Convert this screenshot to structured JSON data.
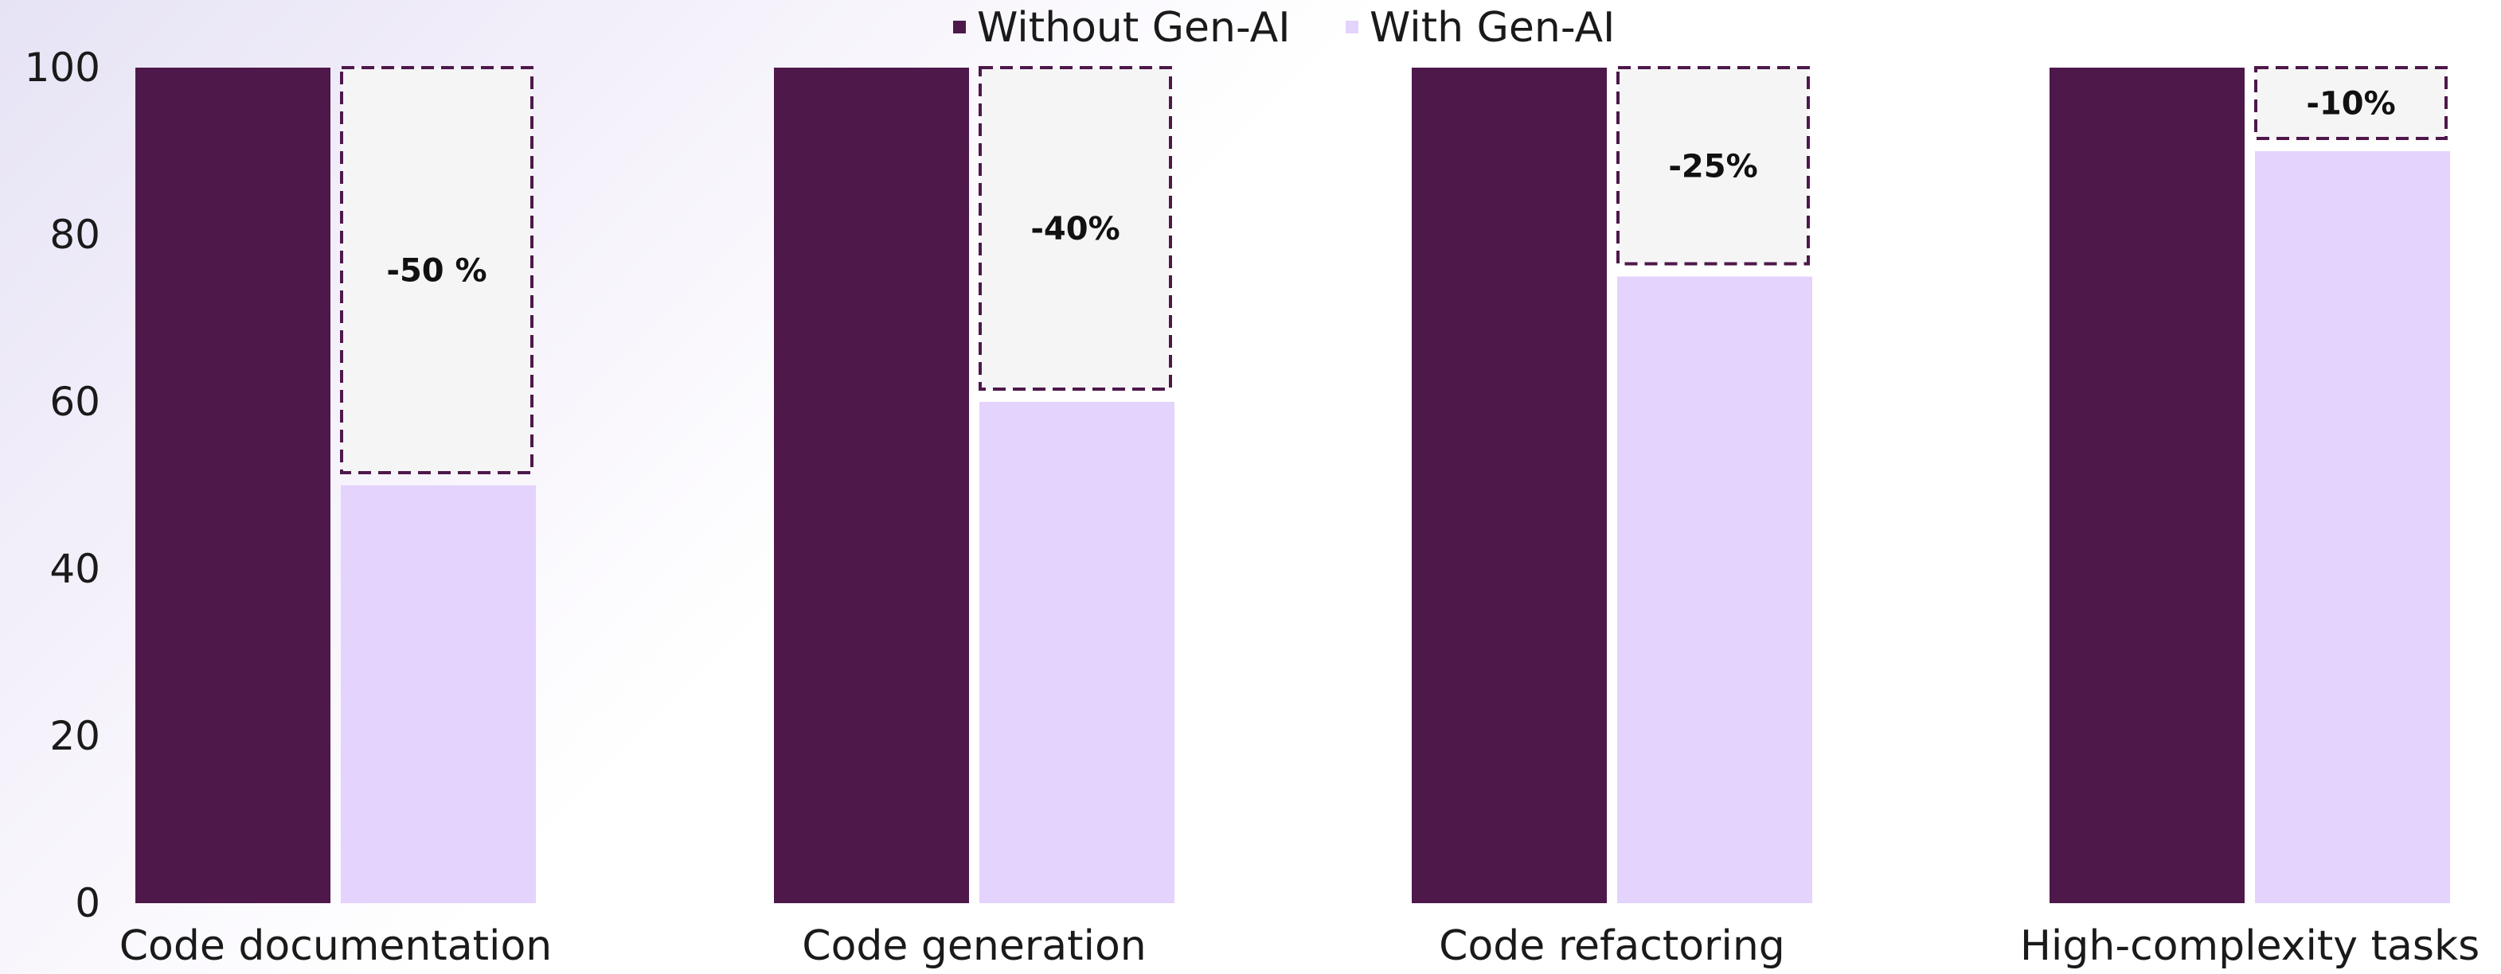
{
  "chart_data": {
    "type": "bar",
    "categories": [
      "Code documentation",
      "Code generation",
      "Code refactoring",
      "High-complexity tasks"
    ],
    "series": [
      {
        "name": "Without Gen-AI",
        "values": [
          100,
          100,
          100,
          100
        ],
        "color": "#4e184b"
      },
      {
        "name": "With Gen-AI",
        "values": [
          50,
          60,
          75,
          90
        ],
        "color": "#e3d3fd"
      }
    ],
    "annotations": [
      "-50 %",
      "-40%",
      "-25%",
      "-10%"
    ],
    "annotation_style": {
      "fill": "#f5f5f5",
      "stroke": "#4e184b",
      "dash": "dashed"
    },
    "yticks": [
      "0",
      "20",
      "40",
      "60",
      "80",
      "100"
    ],
    "ylim": [
      0,
      100
    ],
    "legend_position": "top-center",
    "grid": false
  }
}
